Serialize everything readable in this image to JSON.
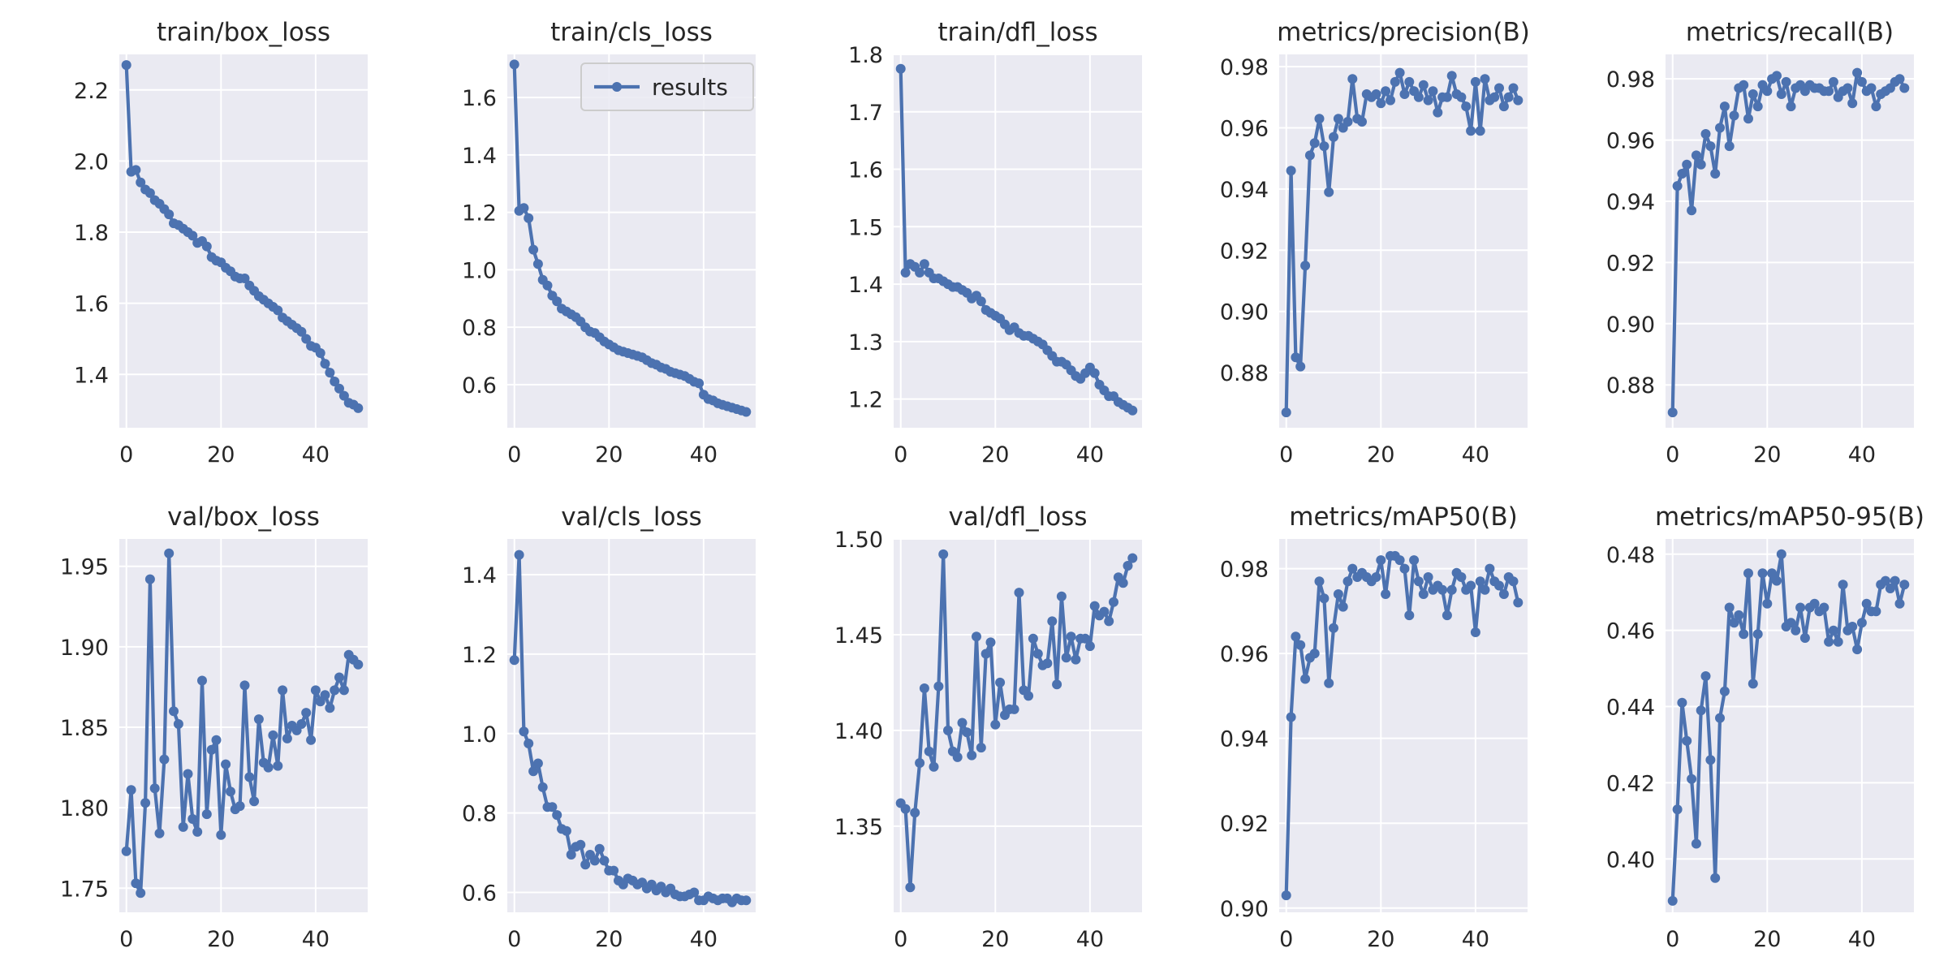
{
  "style": {
    "plot_bg": "#EAEAF2",
    "grid": "#FFFFFF",
    "line": "#4C72B0"
  },
  "legend": {
    "label": "results",
    "panel": 1,
    "placement": "upper-right"
  },
  "chart_data": [
    {
      "type": "line",
      "title": "train/box_loss",
      "xlim": [
        -1.5,
        51
      ],
      "xticks": [
        0,
        20,
        40
      ],
      "ylim": [
        1.25,
        2.3
      ],
      "yticks": [
        1.4,
        1.6,
        1.8,
        2.0,
        2.2
      ],
      "ytick_labels": [
        "1.4",
        "1.6",
        "1.8",
        "2.0",
        "2.2"
      ],
      "series": [
        {
          "name": "results",
          "values": [
            2.27,
            1.97,
            1.975,
            1.94,
            1.92,
            1.91,
            1.89,
            1.88,
            1.865,
            1.85,
            1.825,
            1.82,
            1.81,
            1.8,
            1.79,
            1.77,
            1.775,
            1.76,
            1.73,
            1.72,
            1.715,
            1.7,
            1.69,
            1.675,
            1.67,
            1.67,
            1.65,
            1.635,
            1.62,
            1.61,
            1.6,
            1.59,
            1.58,
            1.56,
            1.55,
            1.54,
            1.53,
            1.52,
            1.5,
            1.48,
            1.475,
            1.46,
            1.43,
            1.405,
            1.38,
            1.36,
            1.34,
            1.32,
            1.315,
            1.305
          ]
        }
      ]
    },
    {
      "type": "line",
      "title": "train/cls_loss",
      "xlim": [
        -1.5,
        51
      ],
      "xticks": [
        0,
        20,
        40
      ],
      "ylim": [
        0.45,
        1.75
      ],
      "yticks": [
        0.6,
        0.8,
        1.0,
        1.2,
        1.4,
        1.6
      ],
      "ytick_labels": [
        "0.6",
        "0.8",
        "1.0",
        "1.2",
        "1.4",
        "1.6"
      ],
      "series": [
        {
          "name": "results",
          "values": [
            1.715,
            1.205,
            1.215,
            1.18,
            1.07,
            1.02,
            0.965,
            0.945,
            0.91,
            0.89,
            0.865,
            0.855,
            0.845,
            0.835,
            0.82,
            0.8,
            0.785,
            0.78,
            0.765,
            0.75,
            0.74,
            0.73,
            0.72,
            0.715,
            0.71,
            0.705,
            0.7,
            0.695,
            0.685,
            0.675,
            0.67,
            0.66,
            0.655,
            0.645,
            0.64,
            0.635,
            0.63,
            0.62,
            0.61,
            0.605,
            0.565,
            0.55,
            0.545,
            0.535,
            0.53,
            0.525,
            0.52,
            0.515,
            0.51,
            0.505
          ]
        }
      ]
    },
    {
      "type": "line",
      "title": "train/dfl_loss",
      "xlim": [
        -1.5,
        51
      ],
      "xticks": [
        0,
        20,
        40
      ],
      "ylim": [
        1.15,
        1.8
      ],
      "yticks": [
        1.2,
        1.3,
        1.4,
        1.5,
        1.6,
        1.7,
        1.8
      ],
      "ytick_labels": [
        "1.2",
        "1.3",
        "1.4",
        "1.5",
        "1.6",
        "1.7",
        "1.8"
      ],
      "series": [
        {
          "name": "results",
          "values": [
            1.775,
            1.42,
            1.435,
            1.43,
            1.42,
            1.435,
            1.42,
            1.41,
            1.41,
            1.405,
            1.4,
            1.395,
            1.395,
            1.39,
            1.385,
            1.375,
            1.38,
            1.37,
            1.355,
            1.35,
            1.345,
            1.34,
            1.33,
            1.32,
            1.325,
            1.315,
            1.31,
            1.31,
            1.305,
            1.3,
            1.295,
            1.285,
            1.275,
            1.265,
            1.265,
            1.26,
            1.25,
            1.24,
            1.235,
            1.245,
            1.255,
            1.245,
            1.225,
            1.215,
            1.205,
            1.205,
            1.195,
            1.19,
            1.185,
            1.18
          ]
        }
      ]
    },
    {
      "type": "line",
      "title": "metrics/precision(B)",
      "xlim": [
        -1.5,
        51
      ],
      "xticks": [
        0,
        20,
        40
      ],
      "ylim": [
        0.862,
        0.984
      ],
      "yticks": [
        0.88,
        0.9,
        0.92,
        0.94,
        0.96,
        0.98
      ],
      "ytick_labels": [
        "0.88",
        "0.90",
        "0.92",
        "0.94",
        "0.96",
        "0.98"
      ],
      "series": [
        {
          "name": "results",
          "values": [
            0.867,
            0.946,
            0.885,
            0.882,
            0.915,
            0.951,
            0.955,
            0.963,
            0.954,
            0.939,
            0.957,
            0.963,
            0.96,
            0.962,
            0.976,
            0.963,
            0.962,
            0.971,
            0.97,
            0.971,
            0.968,
            0.972,
            0.969,
            0.975,
            0.978,
            0.971,
            0.975,
            0.972,
            0.97,
            0.974,
            0.969,
            0.972,
            0.965,
            0.97,
            0.97,
            0.977,
            0.971,
            0.97,
            0.967,
            0.959,
            0.975,
            0.959,
            0.976,
            0.969,
            0.97,
            0.973,
            0.967,
            0.97,
            0.973,
            0.969
          ]
        }
      ]
    },
    {
      "type": "line",
      "title": "metrics/recall(B)",
      "xlim": [
        -1.5,
        51
      ],
      "xticks": [
        0,
        20,
        40
      ],
      "ylim": [
        0.866,
        0.988
      ],
      "yticks": [
        0.88,
        0.9,
        0.92,
        0.94,
        0.96,
        0.98
      ],
      "ytick_labels": [
        "0.88",
        "0.90",
        "0.92",
        "0.94",
        "0.96",
        "0.98"
      ],
      "series": [
        {
          "name": "results",
          "values": [
            0.871,
            0.945,
            0.949,
            0.952,
            0.937,
            0.955,
            0.952,
            0.962,
            0.958,
            0.949,
            0.964,
            0.971,
            0.958,
            0.968,
            0.977,
            0.978,
            0.967,
            0.975,
            0.971,
            0.978,
            0.976,
            0.98,
            0.981,
            0.975,
            0.979,
            0.971,
            0.977,
            0.978,
            0.976,
            0.978,
            0.977,
            0.977,
            0.976,
            0.976,
            0.979,
            0.974,
            0.976,
            0.977,
            0.972,
            0.982,
            0.979,
            0.976,
            0.977,
            0.971,
            0.975,
            0.976,
            0.977,
            0.979,
            0.98,
            0.977
          ]
        }
      ]
    },
    {
      "type": "line",
      "title": "val/box_loss",
      "xlim": [
        -1.5,
        51
      ],
      "xticks": [
        0,
        20,
        40
      ],
      "ylim": [
        1.735,
        1.967
      ],
      "yticks": [
        1.75,
        1.8,
        1.85,
        1.9,
        1.95
      ],
      "ytick_labels": [
        "1.75",
        "1.80",
        "1.85",
        "1.90",
        "1.95"
      ],
      "series": [
        {
          "name": "results",
          "values": [
            1.773,
            1.811,
            1.753,
            1.747,
            1.803,
            1.942,
            1.812,
            1.784,
            1.83,
            1.958,
            1.86,
            1.852,
            1.788,
            1.821,
            1.793,
            1.785,
            1.879,
            1.796,
            1.836,
            1.842,
            1.783,
            1.827,
            1.81,
            1.799,
            1.801,
            1.876,
            1.819,
            1.804,
            1.855,
            1.828,
            1.825,
            1.845,
            1.826,
            1.873,
            1.843,
            1.851,
            1.848,
            1.852,
            1.859,
            1.842,
            1.873,
            1.866,
            1.87,
            1.862,
            1.873,
            1.881,
            1.873,
            1.895,
            1.892,
            1.889
          ]
        }
      ]
    },
    {
      "type": "line",
      "title": "val/cls_loss",
      "xlim": [
        -1.5,
        51
      ],
      "xticks": [
        0,
        20,
        40
      ],
      "ylim": [
        0.55,
        1.49
      ],
      "yticks": [
        0.6,
        0.8,
        1.0,
        1.2,
        1.4
      ],
      "ytick_labels": [
        "0.6",
        "0.8",
        "1.0",
        "1.2",
        "1.4"
      ],
      "series": [
        {
          "name": "results",
          "values": [
            1.185,
            1.45,
            1.005,
            0.975,
            0.905,
            0.925,
            0.865,
            0.815,
            0.815,
            0.795,
            0.76,
            0.755,
            0.695,
            0.715,
            0.72,
            0.67,
            0.695,
            0.68,
            0.71,
            0.68,
            0.655,
            0.655,
            0.63,
            0.62,
            0.635,
            0.63,
            0.62,
            0.625,
            0.61,
            0.62,
            0.605,
            0.615,
            0.6,
            0.61,
            0.595,
            0.59,
            0.59,
            0.595,
            0.6,
            0.58,
            0.58,
            0.59,
            0.585,
            0.58,
            0.585,
            0.585,
            0.575,
            0.585,
            0.58,
            0.58
          ]
        }
      ]
    },
    {
      "type": "line",
      "title": "val/dfl_loss",
      "xlim": [
        -1.5,
        51
      ],
      "xticks": [
        0,
        20,
        40
      ],
      "ylim": [
        1.305,
        1.5
      ],
      "yticks": [
        1.35,
        1.4,
        1.45,
        1.5
      ],
      "ytick_labels": [
        "1.35",
        "1.40",
        "1.45",
        "1.50"
      ],
      "series": [
        {
          "name": "results",
          "values": [
            1.362,
            1.359,
            1.318,
            1.357,
            1.383,
            1.422,
            1.389,
            1.381,
            1.423,
            1.492,
            1.4,
            1.389,
            1.386,
            1.404,
            1.399,
            1.387,
            1.449,
            1.391,
            1.44,
            1.446,
            1.403,
            1.425,
            1.408,
            1.411,
            1.411,
            1.472,
            1.421,
            1.418,
            1.448,
            1.44,
            1.434,
            1.435,
            1.457,
            1.424,
            1.47,
            1.438,
            1.449,
            1.437,
            1.448,
            1.448,
            1.444,
            1.465,
            1.46,
            1.462,
            1.457,
            1.467,
            1.48,
            1.477,
            1.486,
            1.49
          ]
        }
      ]
    },
    {
      "type": "line",
      "title": "metrics/mAP50(B)",
      "xlim": [
        -1.5,
        51
      ],
      "xticks": [
        0,
        20,
        40
      ],
      "ylim": [
        0.899,
        0.987
      ],
      "yticks": [
        0.9,
        0.92,
        0.94,
        0.96,
        0.98
      ],
      "ytick_labels": [
        "0.90",
        "0.92",
        "0.94",
        "0.96",
        "0.98"
      ],
      "series": [
        {
          "name": "results",
          "values": [
            0.903,
            0.945,
            0.964,
            0.962,
            0.954,
            0.959,
            0.96,
            0.977,
            0.973,
            0.953,
            0.966,
            0.974,
            0.971,
            0.977,
            0.98,
            0.978,
            0.979,
            0.978,
            0.977,
            0.978,
            0.982,
            0.974,
            0.983,
            0.983,
            0.982,
            0.98,
            0.969,
            0.982,
            0.977,
            0.974,
            0.978,
            0.975,
            0.976,
            0.975,
            0.969,
            0.975,
            0.979,
            0.978,
            0.975,
            0.976,
            0.965,
            0.977,
            0.975,
            0.98,
            0.977,
            0.976,
            0.974,
            0.978,
            0.977,
            0.972
          ]
        }
      ]
    },
    {
      "type": "line",
      "title": "metrics/mAP50-95(B)",
      "xlim": [
        -1.5,
        51
      ],
      "xticks": [
        0,
        20,
        40
      ],
      "ylim": [
        0.386,
        0.484
      ],
      "yticks": [
        0.4,
        0.42,
        0.44,
        0.46,
        0.48
      ],
      "ytick_labels": [
        "0.40",
        "0.42",
        "0.44",
        "0.46",
        "0.48"
      ],
      "series": [
        {
          "name": "results",
          "values": [
            0.389,
            0.413,
            0.441,
            0.431,
            0.421,
            0.404,
            0.439,
            0.448,
            0.426,
            0.395,
            0.437,
            0.444,
            0.466,
            0.462,
            0.464,
            0.459,
            0.475,
            0.446,
            0.459,
            0.475,
            0.467,
            0.475,
            0.473,
            0.48,
            0.461,
            0.462,
            0.46,
            0.466,
            0.458,
            0.466,
            0.467,
            0.465,
            0.466,
            0.457,
            0.46,
            0.457,
            0.472,
            0.46,
            0.461,
            0.455,
            0.462,
            0.467,
            0.465,
            0.465,
            0.472,
            0.473,
            0.471,
            0.473,
            0.467,
            0.472
          ]
        }
      ]
    }
  ]
}
